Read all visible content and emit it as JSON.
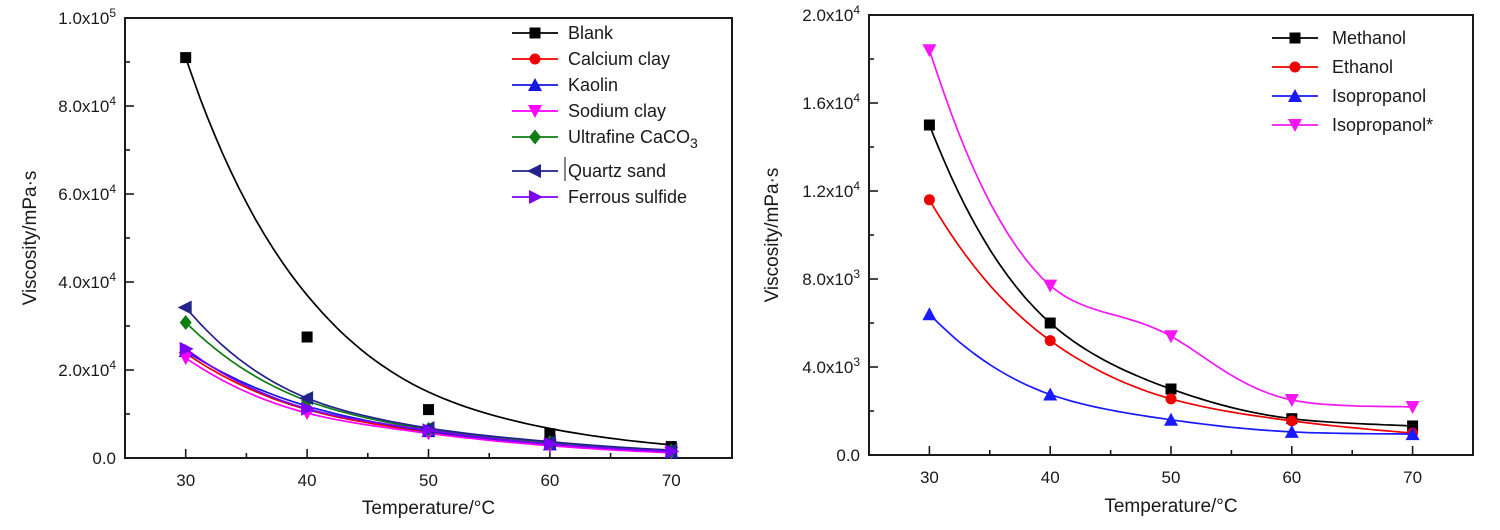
{
  "figure": {
    "background": "#ffffff",
    "ink_color": "#1a1a1a",
    "description": "Two line charts of viscosity versus temperature"
  },
  "chart_data": [
    {
      "type": "line",
      "title": "",
      "xlabel": "Temperature/°C",
      "ylabel": "Viscosity/mPa·s",
      "xlim": [
        25,
        75
      ],
      "ylim": [
        0,
        100000
      ],
      "grid": false,
      "legend_position": "top-right",
      "x": [
        30,
        40,
        50,
        60,
        70
      ],
      "xtick_labels": [
        "30",
        "40",
        "50",
        "60",
        "70"
      ],
      "minor_xticks": [
        35,
        45,
        55,
        65
      ],
      "yticks": [
        {
          "value": 0,
          "label": "0.0"
        },
        {
          "value": 20000,
          "label": "2.0x10^4"
        },
        {
          "value": 40000,
          "label": "4.0x10^4"
        },
        {
          "value": 60000,
          "label": "6.0x10^4"
        },
        {
          "value": 80000,
          "label": "8.0x10^4"
        },
        {
          "value": 100000,
          "label": "1.0x10^5"
        }
      ],
      "minor_yticks": [
        10000,
        30000,
        50000,
        70000,
        90000
      ],
      "series": [
        {
          "name": "Blank",
          "color": "#000000",
          "marker": "square",
          "values": [
            91000,
            27500,
            11000,
            5500,
            2600
          ],
          "trend": [
            91000,
            37000,
            15000,
            6700,
            3000
          ]
        },
        {
          "name": "Calcium clay",
          "color": "#ee0000",
          "marker": "circle",
          "values": [
            23800,
            11000,
            5900,
            3000,
            1300
          ]
        },
        {
          "name": "Kaolin",
          "color": "#1616e0",
          "marker": "triangle-up",
          "values": [
            24300,
            11800,
            6100,
            3100,
            1400
          ]
        },
        {
          "name": "Sodium clay",
          "color": "#ff00ff",
          "marker": "triangle-down",
          "values": [
            22700,
            10200,
            5600,
            2800,
            1200
          ]
        },
        {
          "name": "Ultrafine CaCO_3",
          "color": "#0e7d12",
          "marker": "diamond",
          "values": [
            30800,
            13000,
            6500,
            3500,
            1600
          ]
        },
        {
          "name": "Quartz sand",
          "color": "#23238c",
          "marker": "triangle-left",
          "values": [
            34200,
            13600,
            6800,
            3700,
            1800
          ],
          "cursor_artifact": true
        },
        {
          "name": "Ferrous sulfide",
          "color": "#7c00f8",
          "marker": "triangle-right",
          "values": [
            24800,
            11200,
            6300,
            3200,
            1500
          ]
        }
      ]
    },
    {
      "type": "line",
      "title": "",
      "xlabel": "Temperature/°C",
      "ylabel": "Viscosity/mPa·s",
      "xlim": [
        25,
        75
      ],
      "ylim": [
        0,
        20000
      ],
      "grid": false,
      "legend_position": "top-right",
      "x": [
        30,
        40,
        50,
        60,
        70
      ],
      "xtick_labels": [
        "30",
        "40",
        "50",
        "60",
        "70"
      ],
      "minor_xticks": [
        35,
        45,
        55,
        65
      ],
      "yticks": [
        {
          "value": 0,
          "label": "0.0"
        },
        {
          "value": 4000,
          "label": "4.0x10^3"
        },
        {
          "value": 8000,
          "label": "8.0x10^3"
        },
        {
          "value": 12000,
          "label": "1.2x10^4"
        },
        {
          "value": 16000,
          "label": "1.6x10^4"
        },
        {
          "value": 20000,
          "label": "2.0x10^4"
        }
      ],
      "minor_yticks": [
        2000,
        6000,
        10000,
        14000,
        18000
      ],
      "series": [
        {
          "name": "Methanol",
          "color": "#000000",
          "marker": "square",
          "values": [
            15000,
            6000,
            3000,
            1650,
            1320
          ]
        },
        {
          "name": "Ethanol",
          "color": "#ee0000",
          "marker": "circle",
          "values": [
            11600,
            5200,
            2550,
            1550,
            1000
          ]
        },
        {
          "name": "Isopropanol",
          "color": "#1a1aff",
          "marker": "triangle-up",
          "values": [
            6400,
            2750,
            1600,
            1050,
            950
          ]
        },
        {
          "name": "Isopropanol*",
          "color": "#f318f3",
          "marker": "triangle-down",
          "values": [
            18400,
            7700,
            5400,
            2500,
            2180
          ]
        }
      ]
    }
  ]
}
